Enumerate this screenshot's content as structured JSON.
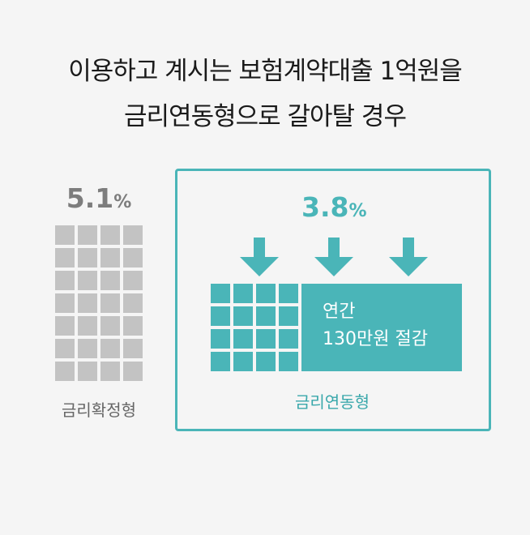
{
  "title": {
    "line1": "이용하고 계시는 보험계약대출 1억원을",
    "line2": "금리연동형으로 갈아탈 경우"
  },
  "fixed": {
    "rate_number": "5.1",
    "rate_unit": "%",
    "label": "금리확정형",
    "color": "#7d7d7d",
    "block_color": "#c3c3c3"
  },
  "variable": {
    "rate_number": "3.8",
    "rate_unit": "%",
    "label": "금리연동형",
    "color": "#4ab5b8",
    "savings_line1": "연간",
    "savings_line2": "130만원 절감",
    "arrow_icon": "arrow-down-icon"
  }
}
